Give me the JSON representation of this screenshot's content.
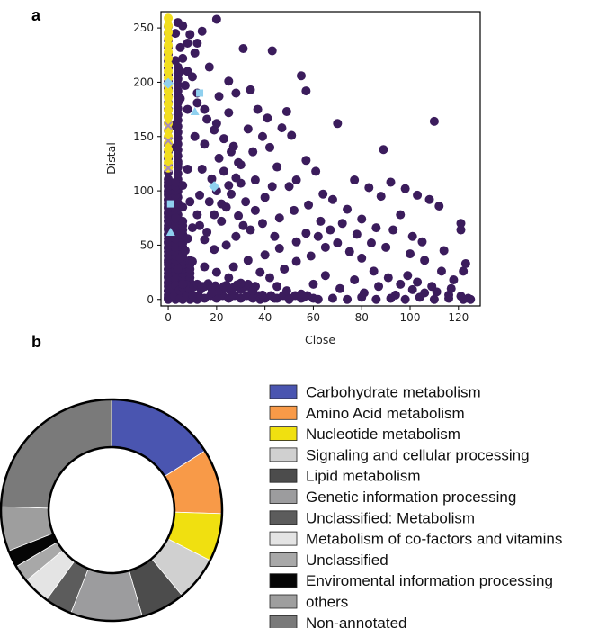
{
  "panels": {
    "a": "a",
    "b": "b"
  },
  "chart_data": [
    {
      "type": "scatter",
      "panel": "a",
      "title": "",
      "xlabel": "Close",
      "ylabel": "Distal",
      "xlim": [
        -3,
        129
      ],
      "ylim": [
        -6,
        265
      ],
      "xticks": [
        0,
        20,
        40,
        60,
        80,
        100,
        120
      ],
      "yticks": [
        0,
        50,
        100,
        150,
        200,
        250
      ],
      "grid": false,
      "legend": "none",
      "series": [
        {
          "name": "main",
          "color": "#3b1c5c",
          "marker": "circle",
          "points": [
            [
              20,
              258
            ],
            [
              14,
              247
            ],
            [
              31,
              231
            ],
            [
              43,
              229
            ],
            [
              55,
              206
            ],
            [
              57,
              192
            ],
            [
              34,
              193
            ],
            [
              28,
              190
            ],
            [
              21,
              187
            ],
            [
              25,
              201
            ],
            [
              11,
              227
            ],
            [
              17,
              214
            ],
            [
              8,
              236
            ],
            [
              6,
              252
            ],
            [
              9,
              244
            ],
            [
              12,
              236
            ],
            [
              3,
              220
            ],
            [
              5,
              210
            ],
            [
              7,
              197
            ],
            [
              5,
              185
            ],
            [
              10,
              205
            ],
            [
              4,
              170
            ],
            [
              8,
              175
            ],
            [
              12,
              181
            ],
            [
              16,
              166
            ],
            [
              20,
              162
            ],
            [
              25,
              172
            ],
            [
              37,
              175
            ],
            [
              41,
              167
            ],
            [
              47,
              158
            ],
            [
              49,
              173
            ],
            [
              51,
              151
            ],
            [
              39,
              150
            ],
            [
              33,
              157
            ],
            [
              27,
              141
            ],
            [
              21,
              130
            ],
            [
              15,
              143
            ],
            [
              11,
              150
            ],
            [
              14,
              120
            ],
            [
              18,
              111
            ],
            [
              23,
              118
            ],
            [
              29,
              126
            ],
            [
              35,
              136
            ],
            [
              42,
              140
            ],
            [
              45,
              122
            ],
            [
              36,
              110
            ],
            [
              30,
              107
            ],
            [
              26,
              97
            ],
            [
              32,
              90
            ],
            [
              40,
              94
            ],
            [
              43,
              104
            ],
            [
              50,
              104
            ],
            [
              53,
              110
            ],
            [
              57,
              128
            ],
            [
              61,
              118
            ],
            [
              64,
              97
            ],
            [
              58,
              87
            ],
            [
              52,
              82
            ],
            [
              46,
              75
            ],
            [
              39,
              70
            ],
            [
              34,
              64
            ],
            [
              28,
              58
            ],
            [
              24,
              50
            ],
            [
              19,
              46
            ],
            [
              15,
              55
            ],
            [
              22,
              72
            ],
            [
              12,
              78
            ],
            [
              9,
              90
            ],
            [
              6,
              105
            ],
            [
              8,
              120
            ],
            [
              3,
              140
            ],
            [
              2,
              160
            ],
            [
              4,
              125
            ],
            [
              6,
              85
            ],
            [
              3,
              75
            ],
            [
              5,
              60
            ],
            [
              7,
              45
            ],
            [
              10,
              35
            ],
            [
              15,
              30
            ],
            [
              20,
              25
            ],
            [
              25,
              20
            ],
            [
              30,
              15
            ],
            [
              36,
              12
            ],
            [
              42,
              20
            ],
            [
              48,
              28
            ],
            [
              53,
              35
            ],
            [
              59,
              40
            ],
            [
              65,
              48
            ],
            [
              70,
              52
            ],
            [
              75,
              44
            ],
            [
              80,
              38
            ],
            [
              85,
              26
            ],
            [
              91,
              20
            ],
            [
              96,
              14
            ],
            [
              101,
              9
            ],
            [
              106,
              6
            ],
            [
              111,
              7
            ],
            [
              116,
              4
            ],
            [
              121,
              3
            ],
            [
              124,
              1
            ],
            [
              70,
              162
            ],
            [
              89,
              138
            ],
            [
              110,
              164
            ],
            [
              77,
              110
            ],
            [
              83,
              103
            ],
            [
              88,
              95
            ],
            [
              92,
              108
            ],
            [
              98,
              102
            ],
            [
              103,
              96
            ],
            [
              108,
              92
            ],
            [
              112,
              86
            ],
            [
              96,
              78
            ],
            [
              86,
              66
            ],
            [
              80,
              74
            ],
            [
              74,
              83
            ],
            [
              68,
              92
            ],
            [
              63,
              72
            ],
            [
              62,
              58
            ],
            [
              67,
              64
            ],
            [
              72,
              70
            ],
            [
              78,
              60
            ],
            [
              84,
              52
            ],
            [
              90,
              48
            ],
            [
              100,
              42
            ],
            [
              106,
              36
            ],
            [
              113,
              26
            ],
            [
              121,
              70
            ],
            [
              121,
              64
            ],
            [
              123,
              33
            ],
            [
              122,
              26
            ],
            [
              118,
              18
            ],
            [
              93,
              64
            ],
            [
              101,
              58
            ],
            [
              105,
              53
            ],
            [
              114,
              45
            ],
            [
              38,
              0
            ],
            [
              44,
              1
            ],
            [
              50,
              0
            ],
            [
              56,
              2
            ],
            [
              62,
              0
            ],
            [
              68,
              1
            ],
            [
              74,
              0
            ],
            [
              80,
              2
            ],
            [
              86,
              0
            ],
            [
              92,
              1
            ],
            [
              98,
              0
            ],
            [
              104,
              2
            ],
            [
              110,
              0
            ],
            [
              116,
              1
            ],
            [
              122,
              0
            ],
            [
              125,
              0
            ],
            [
              40,
              41
            ],
            [
              46,
              47
            ],
            [
              53,
              53
            ],
            [
              57,
              61
            ],
            [
              44,
              58
            ],
            [
              36,
              82
            ],
            [
              29,
              77
            ],
            [
              17,
              90
            ],
            [
              13,
              96
            ],
            [
              20,
              100
            ],
            [
              24,
              85
            ],
            [
              31,
              68
            ],
            [
              27,
              30
            ],
            [
              33,
              36
            ],
            [
              38,
              25
            ],
            [
              45,
              12
            ],
            [
              49,
              8
            ],
            [
              55,
              5
            ],
            [
              60,
              14
            ],
            [
              65,
              22
            ],
            [
              71,
              10
            ],
            [
              77,
              18
            ],
            [
              81,
              6
            ],
            [
              87,
              12
            ],
            [
              94,
              4
            ],
            [
              99,
              22
            ],
            [
              103,
              16
            ],
            [
              109,
              12
            ],
            [
              117,
              10
            ],
            [
              35,
              8
            ],
            [
              39,
              4
            ],
            [
              26,
              3
            ],
            [
              23,
              12
            ],
            [
              18,
              6
            ],
            [
              14,
              12
            ],
            [
              10,
              4
            ],
            [
              6,
              14
            ],
            [
              4,
              28
            ],
            [
              5,
              38
            ],
            [
              8,
              56
            ],
            [
              10,
              66
            ],
            [
              13,
              68
            ],
            [
              16,
              62
            ],
            [
              19,
              78
            ],
            [
              22,
              88
            ],
            [
              25,
              105
            ],
            [
              28,
              112
            ],
            [
              30,
              124
            ],
            [
              26,
              136
            ],
            [
              23,
              148
            ],
            [
              19,
              156
            ],
            [
              15,
              175
            ],
            [
              12,
              190
            ],
            [
              8,
              210
            ],
            [
              6,
              222
            ],
            [
              5,
              232
            ],
            [
              3,
              245
            ],
            [
              4,
              255
            ]
          ]
        },
        {
          "name": "nucleotide",
          "color": "#f2de1e",
          "marker": "circle",
          "points": [
            [
              0,
              259
            ],
            [
              0,
              252
            ],
            [
              0,
              246
            ],
            [
              0,
              240
            ],
            [
              0,
              234
            ],
            [
              0,
              228
            ],
            [
              0,
              222
            ],
            [
              0,
              216
            ],
            [
              0,
              210
            ],
            [
              0,
              204
            ],
            [
              0,
              198
            ],
            [
              0,
              192
            ],
            [
              0,
              186
            ],
            [
              0,
              180
            ],
            [
              0,
              174
            ],
            [
              0,
              168
            ],
            [
              0,
              162
            ],
            [
              0,
              156
            ],
            [
              0,
              150
            ],
            [
              0,
              144
            ],
            [
              0,
              138
            ],
            [
              0,
              132
            ],
            [
              0,
              126
            ],
            [
              0,
              121
            ]
          ]
        },
        {
          "name": "light-blue",
          "color": "#8fd0ef",
          "marker": "mixed",
          "points": [
            [
              13,
              190
            ],
            [
              11,
              173
            ],
            [
              19,
              104
            ],
            [
              1,
              88
            ],
            [
              1,
              62
            ],
            [
              0,
              199
            ]
          ]
        },
        {
          "name": "mauve",
          "color": "#a98db8",
          "marker": "x",
          "points": [
            [
              0,
              160
            ],
            [
              0,
              146
            ],
            [
              0,
              121
            ]
          ]
        }
      ]
    },
    {
      "type": "pie",
      "panel": "b",
      "subtype": "donut",
      "start_angle_deg": 0,
      "direction": "clockwise",
      "legend": "right",
      "slices": [
        {
          "label": "Carbohydrate metabolism",
          "value": 16.0,
          "color": "#4a55b0"
        },
        {
          "label": "Amino Acid metabolism",
          "value": 9.5,
          "color": "#f89a48"
        },
        {
          "label": "Nucleotide metabolism",
          "value": 7.0,
          "color": "#f0e010"
        },
        {
          "label": "Signaling and cellular processing",
          "value": 6.5,
          "color": "#d0d0d0"
        },
        {
          "label": "Lipid metabolism",
          "value": 6.5,
          "color": "#4c4c4c"
        },
        {
          "label": "Genetic information processing",
          "value": 10.5,
          "color": "#9c9c9e"
        },
        {
          "label": "Unclassified: Metabolism",
          "value": 4.0,
          "color": "#5c5c5c"
        },
        {
          "label": "Metabolism of co-factors and vitamins",
          "value": 4.0,
          "color": "#e4e4e4"
        },
        {
          "label": "Unclassified",
          "value": 2.5,
          "color": "#a8a8a8"
        },
        {
          "label": "Enviromental information processing",
          "value": 2.5,
          "color": "#050505"
        },
        {
          "label": "others",
          "value": 6.5,
          "color": "#9e9e9e"
        },
        {
          "label": "Non-annotated",
          "value": 24.5,
          "color": "#7a7a7a"
        }
      ]
    }
  ]
}
